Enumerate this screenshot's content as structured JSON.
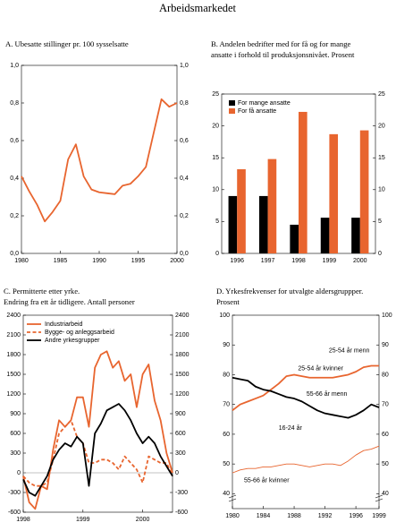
{
  "title": "Arbeidsmarkedet",
  "chart_data": [
    {
      "type": "line",
      "title": [
        "A. Ubesatte stillinger pr. 100 sysselsatte"
      ],
      "x": [
        1980,
        1981,
        1982,
        1983,
        1984,
        1985,
        1986,
        1987,
        1988,
        1989,
        1990,
        1991,
        1992,
        1993,
        1994,
        1995,
        1996,
        1997,
        1998,
        1999,
        2000
      ],
      "values": [
        0.41,
        0.33,
        0.26,
        0.17,
        0.22,
        0.28,
        0.5,
        0.58,
        0.41,
        0.34,
        0.325,
        0.32,
        0.315,
        0.36,
        0.37,
        0.41,
        0.46,
        0.64,
        0.82,
        0.78,
        0.8
      ],
      "color": "#e8652f",
      "xlim": [
        1980,
        2000
      ],
      "xticks": [
        1980,
        1985,
        1990,
        1995,
        2000
      ],
      "ylim": [
        0,
        1
      ],
      "yticks": [
        {
          "value": 0,
          "label": "0,0"
        },
        {
          "value": 0.2,
          "label": "0,2"
        },
        {
          "value": 0.4,
          "label": "0,4"
        },
        {
          "value": 0.6,
          "label": "0,6"
        },
        {
          "value": 0.8,
          "label": "0,8"
        },
        {
          "value": 1,
          "label": "1,0"
        }
      ],
      "right_axis": true
    },
    {
      "type": "bar",
      "title": [
        "B. Andelen bedrifter med for få og for mange",
        "ansatte i forhold til produksjonsnivået. Prosent"
      ],
      "categories": [
        "1996",
        "1997",
        "1998",
        "1999",
        "2000"
      ],
      "series": [
        {
          "name": "For mange ansatte",
          "color": "#000000",
          "values": [
            9,
            9,
            4.5,
            5.6,
            5.6
          ]
        },
        {
          "name": "For få ansatte",
          "color": "#e8652f",
          "values": [
            13.2,
            14.8,
            22.2,
            18.7,
            19.3
          ]
        }
      ],
      "ylim": [
        0,
        25
      ],
      "yticks": [
        0,
        5,
        10,
        15,
        20,
        25
      ],
      "right_axis": true,
      "legend": "top-left"
    },
    {
      "type": "line",
      "title": [
        "C. Permitterte etter yrke.",
        "Endring fra ett år tidligere. Antall personer"
      ],
      "x": [
        1998,
        1998.1,
        1998.2,
        1998.3,
        1998.4,
        1998.5,
        1998.6,
        1998.7,
        1998.8,
        1998.9,
        1999,
        1999.1,
        1999.2,
        1999.3,
        1999.4,
        1999.5,
        1999.6,
        1999.7,
        1999.8,
        1999.9,
        2000,
        2000.1,
        2000.2,
        2000.3,
        2000.4,
        2000.5
      ],
      "series": [
        {
          "name": "Industriarbeid",
          "color": "#e8652f",
          "style": "solid",
          "values": [
            -50,
            -450,
            -550,
            -200,
            -250,
            350,
            800,
            700,
            800,
            1150,
            1150,
            700,
            1600,
            1800,
            1850,
            1600,
            1700,
            1400,
            1500,
            1000,
            1500,
            1650,
            1100,
            800,
            300,
            0
          ]
        },
        {
          "name": "Bygge- og anleggsarbeid",
          "color": "#e8652f",
          "style": "dashed",
          "values": [
            -50,
            -150,
            -200,
            -200,
            -150,
            200,
            600,
            700,
            800,
            550,
            450,
            150,
            150,
            200,
            200,
            150,
            50,
            250,
            150,
            50,
            -150,
            250,
            200,
            150,
            150,
            -50
          ]
        },
        {
          "name": "Andre yrkesgrupper",
          "color": "#000000",
          "style": "solid",
          "values": [
            -100,
            -300,
            -350,
            -200,
            -50,
            200,
            350,
            450,
            400,
            550,
            450,
            -200,
            600,
            750,
            950,
            1000,
            1050,
            950,
            800,
            600,
            450,
            550,
            450,
            250,
            100,
            -50
          ]
        }
      ],
      "xlim": [
        1998,
        2000.5
      ],
      "xticks": [
        1998,
        1999,
        2000
      ],
      "ylim": [
        -600,
        2400
      ],
      "yticks": [
        -600,
        -300,
        0,
        300,
        600,
        900,
        1200,
        1500,
        1800,
        2100,
        2400
      ],
      "right_axis": true,
      "legend": "top-left"
    },
    {
      "type": "line",
      "title": [
        "D. Yrkesfrekvenser for utvalgte aldersgruppper.",
        "Prosent"
      ],
      "x": [
        1980,
        1981,
        1982,
        1983,
        1984,
        1985,
        1986,
        1987,
        1988,
        1989,
        1990,
        1991,
        1992,
        1993,
        1994,
        1995,
        1996,
        1997,
        1998,
        1999
      ],
      "series": [
        {
          "name": "25-54 år kvinner",
          "color": "#e8652f",
          "style": "solid",
          "values": [
            68,
            70,
            71,
            72,
            73,
            75,
            77,
            79.5,
            80,
            79.5,
            79,
            79,
            79,
            79,
            79.5,
            80,
            81,
            82.5,
            83,
            83
          ]
        },
        {
          "name": "55-66 år menn",
          "color": "#000000",
          "style": "solid",
          "values": [
            79,
            78.5,
            78,
            76,
            75,
            74.5,
            73.5,
            72.5,
            72,
            71,
            69.5,
            68,
            67,
            66.5,
            66,
            65.5,
            66.5,
            68,
            70,
            69
          ]
        },
        {
          "name": "55-66 år kvinner",
          "color": "#e8652f",
          "style": "thin",
          "values": [
            47,
            48,
            48.5,
            48.5,
            49,
            49,
            49.5,
            50,
            50,
            49.5,
            49,
            49.5,
            50,
            50,
            49.5,
            51,
            53,
            54.5,
            55,
            56
          ]
        }
      ],
      "annotations": [
        "25-54 år menn",
        "16-24 år"
      ],
      "xlim": [
        1980,
        1999
      ],
      "xticks": [
        1980,
        1984,
        1988,
        1992,
        1996,
        1999
      ],
      "ylim": [
        35,
        100
      ],
      "yticks": [
        40,
        50,
        60,
        70,
        80,
        90,
        100
      ],
      "right_axis": true,
      "legend": "inline"
    }
  ]
}
